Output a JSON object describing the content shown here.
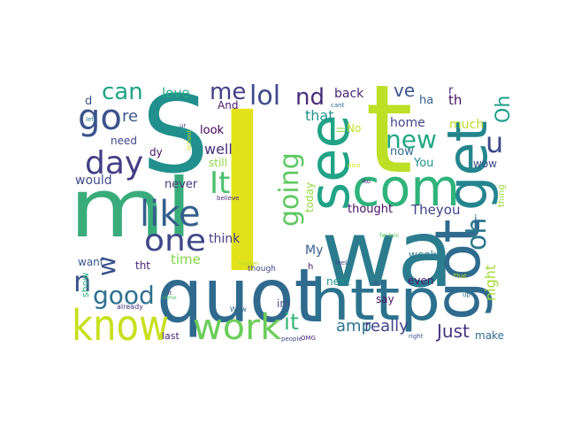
{
  "wordcloud": {
    "words": [
      {
        "text": "I",
        "color": "#e2e21a"
      },
      {
        "text": "wa",
        "color": "#2b7c8e"
      },
      {
        "text": "quot",
        "color": "#2f6a8e"
      },
      {
        "text": "S",
        "color": "#21908d"
      },
      {
        "text": "t",
        "color": "#bddf26"
      },
      {
        "text": "ml",
        "color": "#3aac7c"
      },
      {
        "text": "http",
        "color": "#2c728e"
      },
      {
        "text": "com",
        "color": "#2fb37b"
      },
      {
        "text": "got",
        "color": "#2f6b8e"
      },
      {
        "text": "get",
        "color": "#25858e"
      },
      {
        "text": "see",
        "color": "#20a386"
      },
      {
        "text": "know",
        "color": "#c8e020"
      },
      {
        "text": "work",
        "color": "#6ccd5a"
      },
      {
        "text": "like",
        "color": "#355f8d"
      },
      {
        "text": "one",
        "color": "#3f4788"
      },
      {
        "text": "day",
        "color": "#433e85"
      },
      {
        "text": "go",
        "color": "#3b528b"
      },
      {
        "text": "going",
        "color": "#5ec962"
      },
      {
        "text": "u",
        "color": "#3e4989"
      },
      {
        "text": "It",
        "color": "#4ac16d"
      },
      {
        "text": "lol",
        "color": "#3e4a89"
      },
      {
        "text": "oh",
        "color": "#2a788e"
      },
      {
        "text": "good",
        "color": "#2d708e"
      },
      {
        "text": "new",
        "color": "#22a884"
      },
      {
        "text": "w",
        "color": "#3b518b"
      },
      {
        "text": "n",
        "color": "#3b528b"
      },
      {
        "text": "it",
        "color": "#35b779"
      },
      {
        "text": "Just",
        "color": "#46337f"
      },
      {
        "text": "Oh",
        "color": "#1f9e89"
      },
      {
        "text": "nd",
        "color": "#472c7a"
      },
      {
        "text": "me",
        "color": "#424086"
      },
      {
        "text": "can",
        "color": "#20a486"
      },
      {
        "text": "amp",
        "color": "#2c738e"
      },
      {
        "text": "really",
        "color": "#404688"
      },
      {
        "text": "night",
        "color": "#a5db36"
      },
      {
        "text": "re",
        "color": "#38598c"
      },
      {
        "text": "ve",
        "color": "#3a548c"
      },
      {
        "text": "that",
        "color": "#20938c"
      },
      {
        "text": "well",
        "color": "#472d7b"
      },
      {
        "text": "love",
        "color": "#25ab82"
      },
      {
        "text": "time",
        "color": "#86d549"
      },
      {
        "text": "think",
        "color": "#433d84"
      },
      {
        "text": "thought",
        "color": "#470e61"
      },
      {
        "text": "Theyou",
        "color": "#404588"
      },
      {
        "text": "back",
        "color": "#482374"
      },
      {
        "text": "home",
        "color": "#414487"
      },
      {
        "text": "much",
        "color": "#bade28"
      },
      {
        "text": "now",
        "color": "#31688e"
      },
      {
        "text": "You",
        "color": "#21918c"
      },
      {
        "text": "wow",
        "color": "#3d4d8a"
      },
      {
        "text": "would",
        "color": "#3e4c8a"
      },
      {
        "text": "never",
        "color": "#44397f"
      },
      {
        "text": "need",
        "color": "#3f4788"
      },
      {
        "text": "look",
        "color": "#440154"
      },
      {
        "text": "still",
        "color": "#8fd744"
      },
      {
        "text": "today",
        "color": "#95d840"
      },
      {
        "text": "week",
        "color": "#2a778e"
      },
      {
        "text": "even",
        "color": "#481d6f"
      },
      {
        "text": "say",
        "color": "#481769"
      },
      {
        "text": "next",
        "color": "#20928c"
      },
      {
        "text": "im",
        "color": "#3c508b"
      },
      {
        "text": "My",
        "color": "#355e8d"
      },
      {
        "text": "want",
        "color": "#38598c"
      },
      {
        "text": "show",
        "color": "#28ae80"
      },
      {
        "text": "tht",
        "color": "#482173"
      },
      {
        "text": "th",
        "color": "#471063"
      },
      {
        "text": "ha",
        "color": "#34618d"
      },
      {
        "text": "r",
        "color": "#46307e"
      },
      {
        "text": "ll",
        "color": "#90d743"
      },
      {
        "text": "i",
        "color": "#31678e"
      },
      {
        "text": "And",
        "color": "#481668"
      },
      {
        "text": "dy",
        "color": "#471164"
      },
      {
        "text": "d",
        "color": "#3b528b"
      },
      {
        "text": "No",
        "color": "#c2df23"
      },
      {
        "text": "make",
        "color": "#2e6e8e"
      },
      {
        "text": "last",
        "color": "#482979"
      },
      {
        "text": "thing",
        "color": "#9bd93c"
      },
      {
        "text": "h",
        "color": "#471365"
      },
      {
        "text": "though",
        "color": "#3e4989"
      },
      {
        "text": "already",
        "color": "#46327e"
      },
      {
        "text": "Wow",
        "color": "#31688e"
      },
      {
        "text": "people",
        "color": "#3e4a89"
      },
      {
        "text": "OMG",
        "color": "#482878"
      },
      {
        "text": "right",
        "color": "#3b528b"
      },
      {
        "text": "cant",
        "color": "#31688e"
      },
      {
        "text": "left",
        "color": "#2c728e"
      },
      {
        "text": "ur",
        "color": "#404588"
      },
      {
        "text": "believe",
        "color": "#472c7a"
      },
      {
        "text": "lko",
        "color": "#482374"
      },
      {
        "text": "nice",
        "color": "#d2e21b"
      },
      {
        "text": "twitter",
        "color": "#b5de2b"
      },
      {
        "text": "feel",
        "color": "#3f4889"
      },
      {
        "text": "But",
        "color": "#3b528b"
      },
      {
        "text": "That",
        "color": "#bddf26"
      },
      {
        "text": "up",
        "color": "#2c728e"
      },
      {
        "text": "fw loic",
        "color": "#5ec962"
      },
      {
        "text": "school",
        "color": "#bddf26"
      },
      {
        "text": "come",
        "color": "#4ac16d"
      },
      {
        "text": "lt",
        "color": "#472c7a"
      }
    ]
  }
}
